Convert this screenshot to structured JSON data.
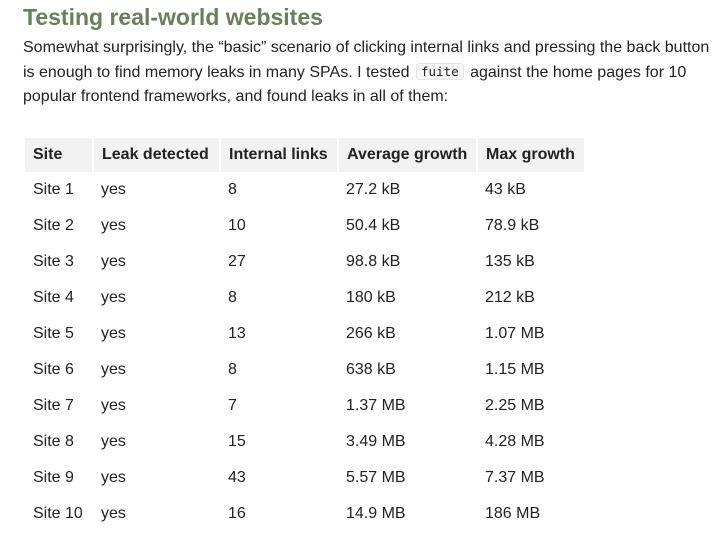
{
  "heading": "Testing real-world websites",
  "intro": {
    "text_before": "Somewhat surprisingly, the “basic” scenario of clicking internal links and pressing the back button is enough to find memory leaks in many SPAs. I tested",
    "code": "fuite",
    "text_after": "against the home pages for 10 popular frontend frameworks, and found leaks in all of them:"
  },
  "table": {
    "headers": [
      "Site",
      "Leak detected",
      "Internal links",
      "Average growth",
      "Max growth"
    ],
    "rows": [
      [
        "Site 1",
        "yes",
        "8",
        "27.2 kB",
        "43 kB"
      ],
      [
        "Site 2",
        "yes",
        "10",
        "50.4 kB",
        "78.9 kB"
      ],
      [
        "Site 3",
        "yes",
        "27",
        "98.8 kB",
        "135 kB"
      ],
      [
        "Site 4",
        "yes",
        "8",
        "180 kB",
        "212 kB"
      ],
      [
        "Site 5",
        "yes",
        "13",
        "266 kB",
        "1.07 MB"
      ],
      [
        "Site 6",
        "yes",
        "8",
        "638 kB",
        "1.15 MB"
      ],
      [
        "Site 7",
        "yes",
        "7",
        "1.37 MB",
        "2.25 MB"
      ],
      [
        "Site 8",
        "yes",
        "15",
        "3.49 MB",
        "4.28 MB"
      ],
      [
        "Site 9",
        "yes",
        "43",
        "5.57 MB",
        "7.37 MB"
      ],
      [
        "Site 10",
        "yes",
        "16",
        "14.9 MB",
        "186 MB"
      ]
    ]
  }
}
